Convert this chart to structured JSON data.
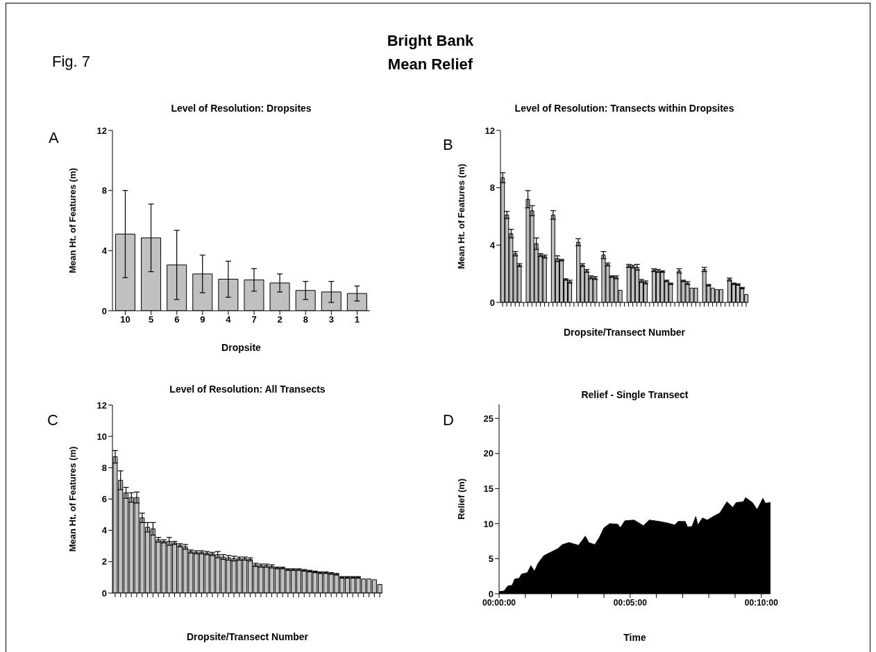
{
  "chart_data": [
    {
      "type": "bar",
      "title": "Level of Resolution:  Dropsites",
      "xlabel": "Dropsite",
      "ylabel": "Mean Ht. of Features (m)",
      "annotations": [
        "Fig. 7",
        "Bright Bank",
        "Mean Relief",
        "A"
      ],
      "categories": [
        "10",
        "5",
        "6",
        "9",
        "4",
        "7",
        "2",
        "8",
        "3",
        "1"
      ],
      "values": [
        5.1,
        4.85,
        3.05,
        2.45,
        2.1,
        2.05,
        1.85,
        1.35,
        1.25,
        1.15
      ],
      "errors": [
        2.9,
        2.25,
        2.3,
        1.25,
        1.2,
        0.75,
        0.6,
        0.6,
        0.7,
        0.5
      ],
      "color": "#c0c0c0",
      "ylim": [
        0,
        12
      ],
      "yticks": [
        0,
        4,
        8,
        12
      ]
    },
    {
      "type": "bar",
      "title": "Level of Resolution:  Transects within Dropsites",
      "xlabel": "Dropsite/Transect Number",
      "ylabel": "Mean Ht. of Features (m)",
      "annotations": [
        "B"
      ],
      "categories": [
        null,
        null,
        null,
        null,
        null,
        null,
        null,
        null,
        null,
        null,
        null,
        null,
        null,
        null,
        null,
        null,
        null,
        null,
        null,
        null,
        null,
        null,
        null,
        null,
        null,
        null,
        null,
        null,
        null,
        null,
        null,
        null,
        null,
        null,
        null,
        null,
        null,
        null,
        null,
        null,
        null,
        null,
        null,
        null,
        null,
        null,
        null,
        null,
        null,
        null,
        null,
        null,
        null,
        null,
        null,
        null,
        null,
        null,
        null
      ],
      "values": [
        8.7,
        6.1,
        4.8,
        3.4,
        2.6,
        null,
        7.2,
        6.4,
        4.1,
        3.3,
        3.2,
        null,
        6.1,
        3.05,
        2.95,
        1.6,
        1.45,
        null,
        4.2,
        2.6,
        2.2,
        1.75,
        1.7,
        null,
        3.3,
        2.65,
        1.8,
        1.75,
        0.85,
        null,
        2.55,
        2.5,
        2.45,
        1.5,
        1.4,
        null,
        2.25,
        2.2,
        2.15,
        1.5,
        1.3,
        null,
        2.2,
        1.5,
        1.35,
        1.0,
        1.0,
        null,
        2.3,
        1.2,
        1.0,
        0.9,
        0.9,
        null,
        1.6,
        1.3,
        1.25,
        1.0,
        0.55
      ],
      "errors": [
        0.35,
        0.25,
        0.3,
        0.15,
        0.1,
        null,
        0.6,
        0.35,
        0.4,
        0.1,
        0.1,
        null,
        0.3,
        0.2,
        0.05,
        0.05,
        0.1,
        null,
        0.25,
        0.1,
        0.1,
        0.1,
        0.1,
        null,
        0.25,
        0.1,
        0.05,
        0.1,
        null,
        null,
        0.1,
        0.1,
        0.2,
        0.1,
        0.1,
        null,
        0.1,
        0.1,
        0.05,
        0.05,
        0.05,
        null,
        0.15,
        0.05,
        0.1,
        null,
        null,
        null,
        0.15,
        0.05,
        null,
        null,
        null,
        null,
        0.1,
        0.05,
        0.05,
        0.05,
        null
      ],
      "color": "#c0c0c0",
      "ylim": [
        0,
        12
      ],
      "yticks": [
        0,
        4,
        8,
        12
      ]
    },
    {
      "type": "bar",
      "title": "Level of Resolution:  All Transects",
      "xlabel": "Dropsite/Transect Number",
      "ylabel": "Mean Ht. of Features (m)",
      "annotations": [
        "C"
      ],
      "categories": [
        null,
        null,
        null,
        null,
        null,
        null,
        null,
        null,
        null,
        null,
        null,
        null,
        null,
        null,
        null,
        null,
        null,
        null,
        null,
        null,
        null,
        null,
        null,
        null,
        null,
        null,
        null,
        null,
        null,
        null,
        null,
        null,
        null,
        null,
        null,
        null,
        null,
        null,
        null,
        null,
        null,
        null,
        null,
        null,
        null,
        null,
        null,
        null,
        null,
        null
      ],
      "values": [
        8.7,
        7.2,
        6.4,
        6.1,
        6.1,
        4.8,
        4.2,
        4.1,
        3.4,
        3.3,
        3.3,
        3.2,
        3.05,
        2.95,
        2.65,
        2.6,
        2.6,
        2.55,
        2.5,
        2.45,
        2.3,
        2.25,
        2.2,
        2.2,
        2.2,
        2.15,
        1.8,
        1.75,
        1.75,
        1.7,
        1.6,
        1.6,
        1.5,
        1.5,
        1.5,
        1.45,
        1.4,
        1.35,
        1.3,
        1.3,
        1.25,
        1.2,
        1.0,
        1.0,
        1.0,
        1.0,
        0.9,
        0.9,
        0.85,
        0.55
      ],
      "errors": [
        0.4,
        0.6,
        0.35,
        0.3,
        0.35,
        0.3,
        0.3,
        0.4,
        0.15,
        0.1,
        0.25,
        0.1,
        0.1,
        0.15,
        0.1,
        0.1,
        0.1,
        0.1,
        0.1,
        0.2,
        0.15,
        0.15,
        0.15,
        0.1,
        0.1,
        0.1,
        0.1,
        0.1,
        0.1,
        0.1,
        0.05,
        0.05,
        0.05,
        0.05,
        0.05,
        0.05,
        0.05,
        0.05,
        0.05,
        0.05,
        0.05,
        0.05,
        0.05,
        0.05,
        0.05,
        0.05,
        null,
        null,
        null,
        null
      ],
      "color": "#c0c0c0",
      "ylim": [
        0,
        12
      ],
      "yticks": [
        0,
        2,
        4,
        6,
        8,
        10,
        12
      ]
    },
    {
      "type": "area",
      "title": "Relief - Single Transect",
      "xlabel": "Time",
      "ylabel": "Relief (m)",
      "annotations": [
        "D"
      ],
      "x": [
        0,
        0.0032,
        0.0055,
        0.0083,
        0.01,
        0.0128,
        0.0143,
        0.018,
        0.0202,
        0.0225,
        0.0247,
        0.0283,
        0.0327,
        0.0372,
        0.0402,
        0.0445,
        0.0505,
        0.0548,
        0.057,
        0.0608,
        0.0637,
        0.0667,
        0.0703,
        0.0755,
        0.077,
        0.08,
        0.0858,
        0.0917,
        0.0955,
        0.102,
        0.1065,
        0.1117,
        0.1138,
        0.1183,
        0.1198,
        0.1227,
        0.125,
        0.1263,
        0.1293,
        0.1323,
        0.136,
        0.1403,
        0.1448,
        0.1485,
        0.1507,
        0.1552,
        0.1567,
        0.161,
        0.164,
        0.1677,
        0.1692,
        0.1725
      ],
      "values": [
        0.3,
        0.4,
        1.1,
        1.2,
        2.1,
        2.2,
        2.8,
        3.0,
        4.0,
        3.2,
        4.3,
        5.4,
        5.9,
        6.4,
        7.0,
        7.3,
        6.9,
        8.2,
        7.3,
        7.0,
        8.0,
        9.4,
        10.0,
        9.9,
        9.4,
        10.4,
        10.5,
        9.7,
        10.5,
        10.3,
        10.1,
        9.8,
        10.3,
        10.3,
        9.5,
        9.6,
        11.0,
        9.8,
        10.8,
        10.5,
        11.0,
        11.5,
        13.1,
        12.3,
        13.0,
        13.1,
        13.7,
        13.0,
        12.0,
        13.6,
        12.9,
        13.0
      ],
      "color": "#000000",
      "xlim": [
        0,
        0.1725
      ],
      "ylim": [
        0,
        27
      ],
      "xticks": [
        {
          "value": 0,
          "label": "00:00:00"
        },
        {
          "value": 0.0167,
          "label": null
        },
        {
          "value": 0.0333,
          "label": null
        },
        {
          "value": 0.05,
          "label": null
        },
        {
          "value": 0.0667,
          "label": null
        },
        {
          "value": 0.0833,
          "label": "00:05:00"
        },
        {
          "value": 0.1,
          "label": null
        },
        {
          "value": 0.1167,
          "label": null
        },
        {
          "value": 0.1333,
          "label": null
        },
        {
          "value": 0.15,
          "label": null
        },
        {
          "value": 0.1667,
          "label": "00:10:00"
        }
      ],
      "yticks": [
        0,
        5,
        10,
        15,
        20,
        25
      ]
    }
  ]
}
